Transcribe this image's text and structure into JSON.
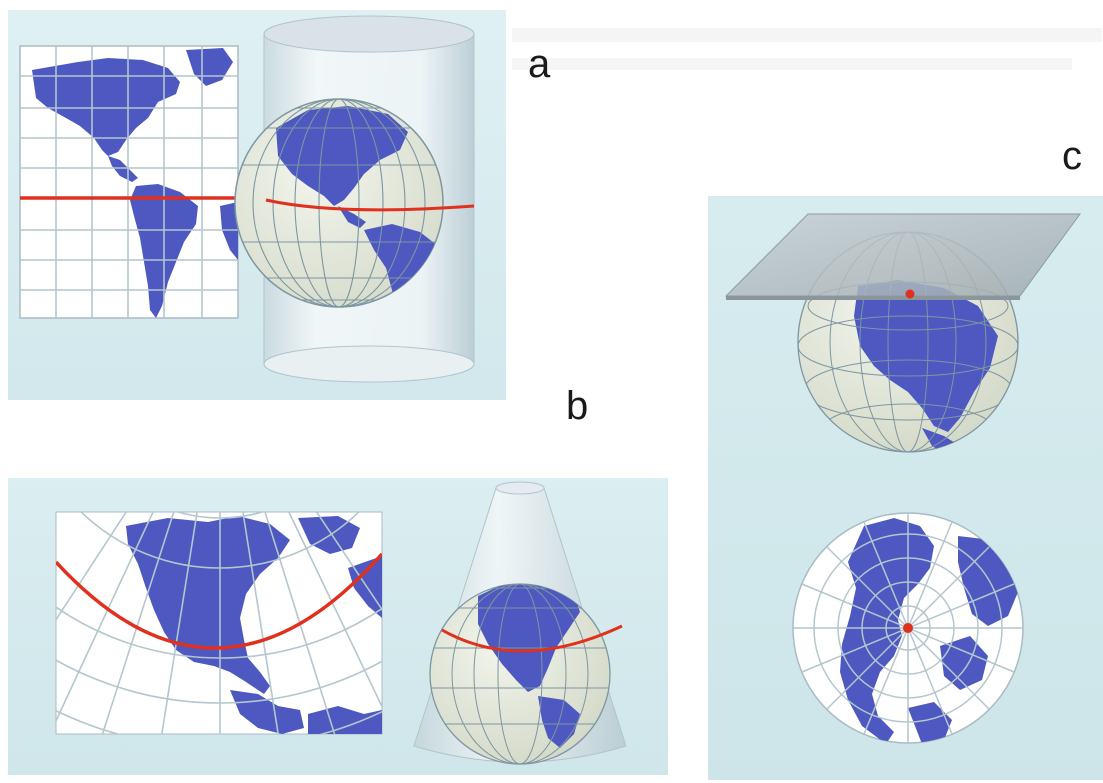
{
  "labels": {
    "a": "a",
    "b": "b",
    "c": "c"
  },
  "colors": {
    "land": "#4d58c0",
    "ocean_map": "#ffffff",
    "globe_ocean": "#e9ece2",
    "grid": "#9bb6c2",
    "standard_line": "#e0301e",
    "panel_bg": "#d6ecef",
    "pole_point": "#e0301e"
  },
  "panels": {
    "a": {
      "projection": "cylindrical",
      "surface": "cylinder-icon"
    },
    "b": {
      "projection": "conic",
      "surface": "cone-icon"
    },
    "c": {
      "projection": "azimuthal",
      "surface": "plane-icon"
    }
  }
}
